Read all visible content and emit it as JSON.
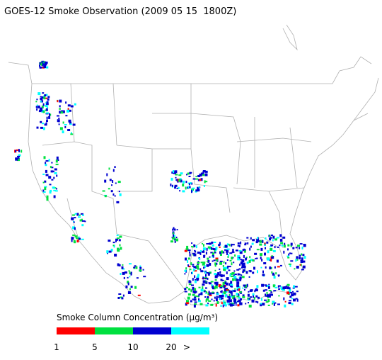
{
  "title": "GOES-12 Smoke Observation (2009 05 15  1800Z)",
  "legend": {
    "title": "Smoke Column Concentration (μg/m³)",
    "colors": [
      "#ff0000",
      "#00e040",
      "#0000d0",
      "#00ffff"
    ],
    "labels": [
      "1",
      "5",
      "10",
      "20",
      ">"
    ]
  }
}
